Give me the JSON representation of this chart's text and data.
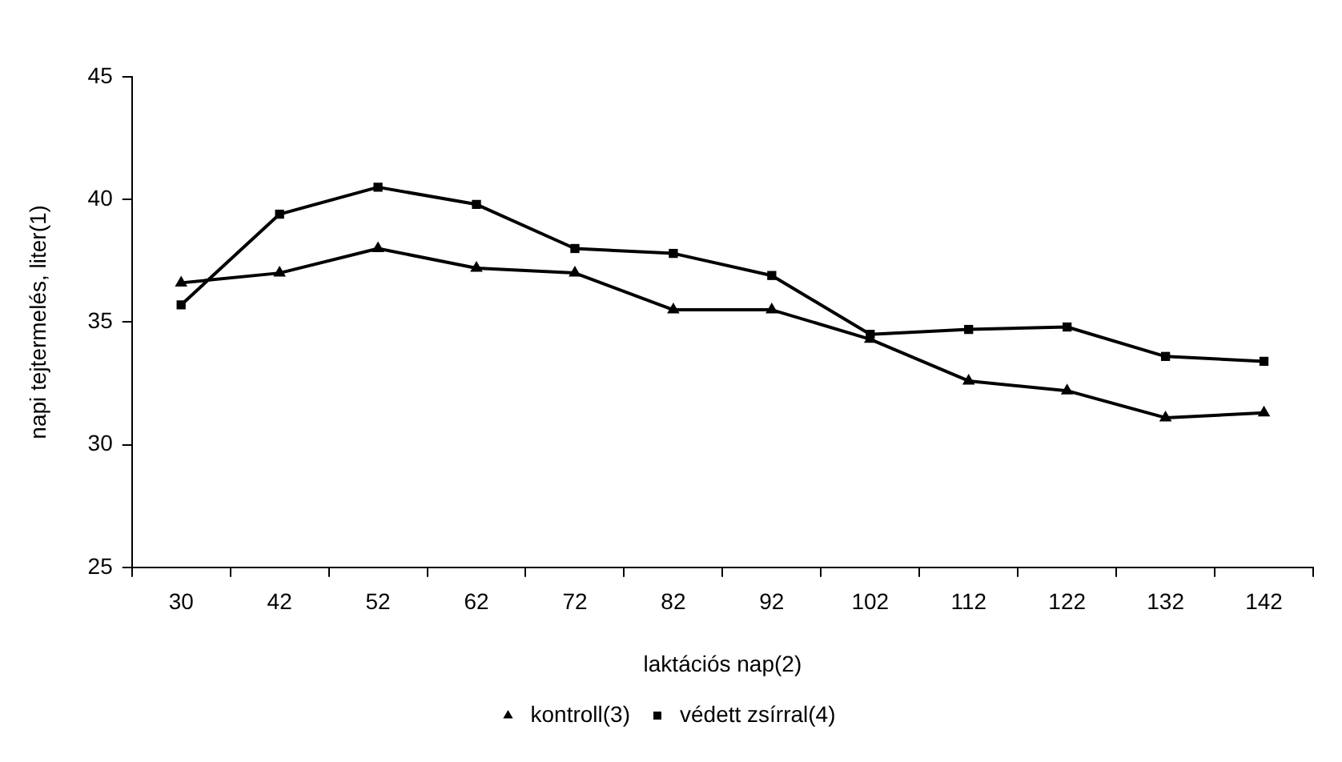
{
  "chart_data": {
    "type": "line",
    "xlabel": "laktációs nap(2)",
    "ylabel": "napi tejtermelés, liter(1)",
    "categories": [
      "30",
      "42",
      "52",
      "62",
      "72",
      "82",
      "92",
      "102",
      "112",
      "122",
      "132",
      "142"
    ],
    "series": [
      {
        "name": "kontroll(3)",
        "color": "#000000",
        "marker": "triangle",
        "values": [
          36.6,
          37.0,
          38.0,
          37.2,
          37.0,
          35.5,
          35.5,
          34.3,
          32.6,
          32.2,
          31.1,
          31.3
        ]
      },
      {
        "name": "védett zsírral(4)",
        "color": "#000000",
        "marker": "square",
        "values": [
          35.7,
          39.4,
          40.5,
          39.8,
          38.0,
          37.8,
          36.9,
          34.5,
          34.7,
          34.8,
          33.6,
          33.4
        ]
      }
    ],
    "ylim": [
      25,
      45
    ],
    "yticks": [
      25,
      30,
      35,
      40,
      45
    ],
    "grid": false,
    "legend": "bottom",
    "line_style": "solid"
  }
}
